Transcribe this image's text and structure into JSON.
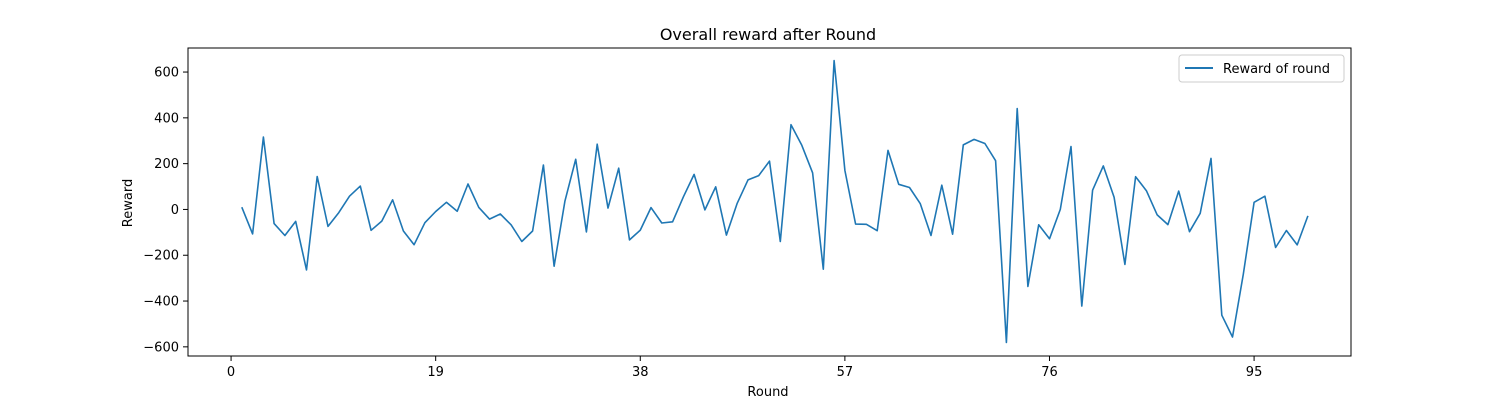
{
  "chart_data": {
    "type": "line",
    "title": "Overall reward after Round",
    "xlabel": "Round",
    "ylabel": "Reward",
    "xlim": [
      -4,
      104
    ],
    "ylim": [
      -640,
      705
    ],
    "xticks": [
      0,
      19,
      38,
      57,
      76,
      95
    ],
    "yticks": [
      -600,
      -400,
      -200,
      0,
      200,
      400,
      600
    ],
    "grid": false,
    "legend_position": "top-right",
    "series": [
      {
        "name": "Reward of round",
        "color": "#1f77b4",
        "x": [
          1,
          2,
          3,
          4,
          5,
          6,
          7,
          8,
          9,
          10,
          11,
          12,
          13,
          14,
          15,
          16,
          17,
          18,
          19,
          20,
          21,
          22,
          23,
          24,
          25,
          26,
          27,
          28,
          29,
          30,
          31,
          32,
          33,
          34,
          35,
          36,
          37,
          38,
          39,
          40,
          41,
          42,
          43,
          44,
          45,
          46,
          47,
          48,
          49,
          50,
          51,
          52,
          53,
          54,
          55,
          56,
          57,
          58,
          59,
          60,
          61,
          62,
          63,
          64,
          65,
          66,
          67,
          68,
          69,
          70,
          71,
          72,
          73,
          74,
          75,
          76,
          77,
          78,
          79,
          80,
          81,
          82,
          83,
          84,
          85,
          86,
          87,
          88,
          89,
          90,
          91,
          92,
          93,
          94,
          95,
          96,
          97,
          98,
          99,
          100
        ],
        "y": [
          10,
          -107,
          316,
          -62,
          -114,
          -52,
          -264,
          144,
          -74,
          -14,
          58,
          102,
          -91,
          -51,
          42,
          -94,
          -154,
          -58,
          -9,
          31,
          -8,
          111,
          9,
          -42,
          -20,
          -67,
          -140,
          -94,
          194,
          -248,
          36,
          219,
          -98,
          285,
          6,
          180,
          -133,
          -90,
          8,
          -59,
          -54,
          55,
          153,
          -2,
          99,
          -112,
          27,
          129,
          148,
          211,
          -140,
          370,
          280,
          160,
          -261,
          650,
          170,
          -64,
          -65,
          -93,
          258,
          110,
          96,
          25,
          -114,
          106,
          -108,
          282,
          306,
          288,
          213,
          -581,
          441,
          -336,
          -67,
          -128,
          0,
          275,
          -422,
          84,
          190,
          53,
          -240,
          143,
          82,
          -24,
          -66,
          80,
          -97,
          -17,
          223,
          -462,
          -557,
          -283,
          31,
          58,
          -166,
          -92,
          -155,
          -28
        ]
      }
    ]
  }
}
